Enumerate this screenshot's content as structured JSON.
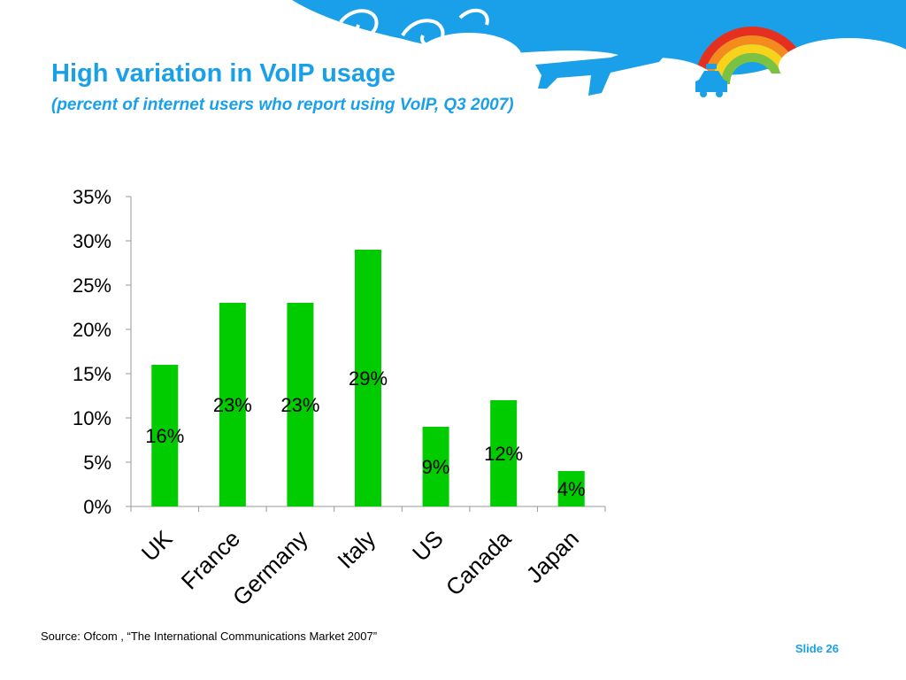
{
  "slide": {
    "title": "High variation in VoIP usage",
    "subtitle": "(percent of internet users who report using VoIP, Q3 2007)",
    "source": "Source: Ofcom , “The International Communications Market 2007”",
    "slide_label": "Slide 26"
  },
  "colors": {
    "sky": "#1aa0e8",
    "bar": "#00cc00",
    "rainbow": [
      "#e53020",
      "#f58a1f",
      "#f7d31c",
      "#7cc242"
    ]
  },
  "chart_data": {
    "type": "bar",
    "title": "",
    "xlabel": "",
    "ylabel": "",
    "categories": [
      "UK",
      "France",
      "Germany",
      "Italy",
      "US",
      "Canada",
      "Japan"
    ],
    "values": [
      16,
      23,
      23,
      29,
      9,
      12,
      4
    ],
    "data_labels": [
      "16%",
      "23%",
      "23%",
      "29%",
      "9%",
      "12%",
      "4%"
    ],
    "ylim": [
      0,
      35
    ],
    "yticks": [
      0,
      5,
      10,
      15,
      20,
      25,
      30,
      35
    ],
    "ytick_labels": [
      "0%",
      "5%",
      "10%",
      "15%",
      "20%",
      "25%",
      "30%",
      "35%"
    ],
    "grid": false,
    "legend": "none"
  }
}
